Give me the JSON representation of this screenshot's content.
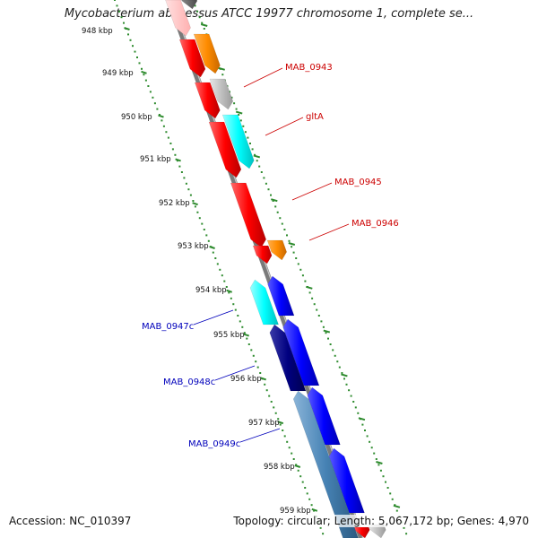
{
  "title": "Mycobacterium abscessus ATCC 19977 chromosome 1, complete se...",
  "footer": {
    "accession": "Accession: NC_010397",
    "stats": "Topology: circular; Length: 5,067,172 bp; Genes: 4,970"
  },
  "ticks": [
    {
      "label": "948 kbp"
    },
    {
      "label": "949 kbp"
    },
    {
      "label": "950 kbp"
    },
    {
      "label": "951 kbp"
    },
    {
      "label": "952 kbp"
    },
    {
      "label": "953 kbp"
    },
    {
      "label": "954 kbp"
    },
    {
      "label": "955 kbp"
    },
    {
      "label": "956 kbp"
    },
    {
      "label": "957 kbp"
    },
    {
      "label": "958 kbp"
    },
    {
      "label": "959 kbp"
    }
  ],
  "gene_labels": {
    "forward": [
      "MAB_0943",
      "gltA",
      "MAB_0945",
      "MAB_0946"
    ],
    "reverse": [
      "MAB_0947c",
      "MAB_0948c",
      "MAB_0949c"
    ]
  },
  "colors": {
    "backbone": "#7a7a7a",
    "tick": "#2e8b2e",
    "forward_label": "#cc0000",
    "reverse_label": "#0000bb",
    "red": "#ff0000",
    "orange": "#ff8c00",
    "gray": "#c0c0c0",
    "cyan": "#00ffff",
    "blue": "#0000ff",
    "navy": "#000080",
    "steel": "#4682b4"
  }
}
